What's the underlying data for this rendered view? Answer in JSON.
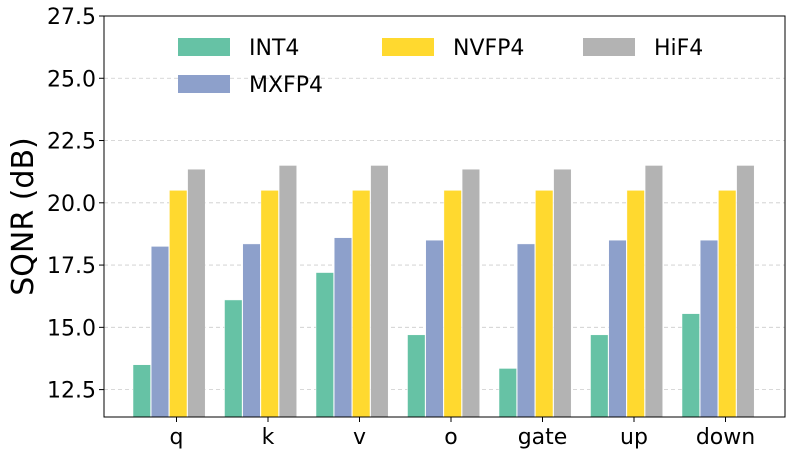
{
  "chart_data": {
    "type": "bar",
    "title": "",
    "xlabel": "",
    "ylabel": "SQNR (dB)",
    "ylim": [
      11.4,
      27.5
    ],
    "yticks": [
      "12.5",
      "15.0",
      "17.5",
      "20.0",
      "22.5",
      "25.0",
      "27.5"
    ],
    "grid": "y-dashed",
    "legend_position": "top",
    "categories": [
      "q",
      "k",
      "v",
      "o",
      "gate",
      "up",
      "down"
    ],
    "series": [
      {
        "name": "INT4",
        "color": "#66c2a5",
        "values": [
          13.5,
          16.1,
          17.2,
          14.7,
          13.35,
          14.7,
          15.55
        ]
      },
      {
        "name": "MXFP4",
        "color": "#8da0cb",
        "values": [
          18.25,
          18.35,
          18.6,
          18.5,
          18.35,
          18.5,
          18.5
        ]
      },
      {
        "name": "NVFP4",
        "color": "#ffd92f",
        "values": [
          20.5,
          20.5,
          20.5,
          20.5,
          20.5,
          20.5,
          20.5
        ]
      },
      {
        "name": "HiF4",
        "color": "#b3b3b3",
        "values": [
          21.35,
          21.5,
          21.5,
          21.35,
          21.35,
          21.5,
          21.5
        ]
      }
    ]
  }
}
